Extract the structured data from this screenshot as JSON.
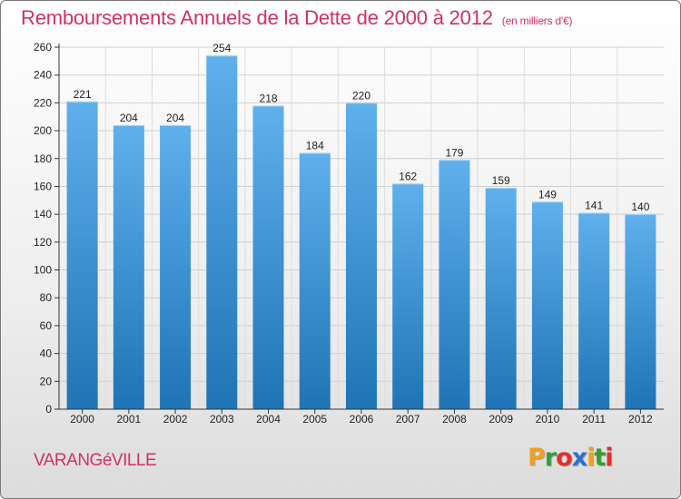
{
  "header": {
    "title": "Remboursements Annuels de la Dette de 2000 à 2012",
    "subtitle": "(en milliers d'€)"
  },
  "footer": {
    "city": "VARANGéVILLE",
    "logo_letters": [
      "P",
      "r",
      "o",
      "x",
      "i",
      "t",
      "i"
    ],
    "logo_colors": [
      "#f0a020",
      "#3a9a3a",
      "#e03030",
      "#2a6fd0",
      "#f0a020",
      "#3a9a3a",
      "#e03030"
    ]
  },
  "colors": {
    "title": "#d0306b",
    "bar_top": "#5fb0ec",
    "bar_bottom": "#1f74b5",
    "axis": "#333333"
  },
  "chart_data": {
    "type": "bar",
    "categories": [
      "2000",
      "2001",
      "2002",
      "2003",
      "2004",
      "2005",
      "2006",
      "2007",
      "2008",
      "2009",
      "2010",
      "2011",
      "2012"
    ],
    "values": [
      221,
      204,
      204,
      254,
      218,
      184,
      220,
      162,
      179,
      159,
      149,
      141,
      140
    ],
    "yticks": [
      0,
      20,
      40,
      60,
      80,
      100,
      120,
      140,
      160,
      180,
      200,
      220,
      240,
      260
    ],
    "ylim": [
      0,
      260
    ],
    "grid": true,
    "title": "Remboursements Annuels de la Dette de 2000 à 2012",
    "xlabel": "",
    "ylabel": ""
  }
}
